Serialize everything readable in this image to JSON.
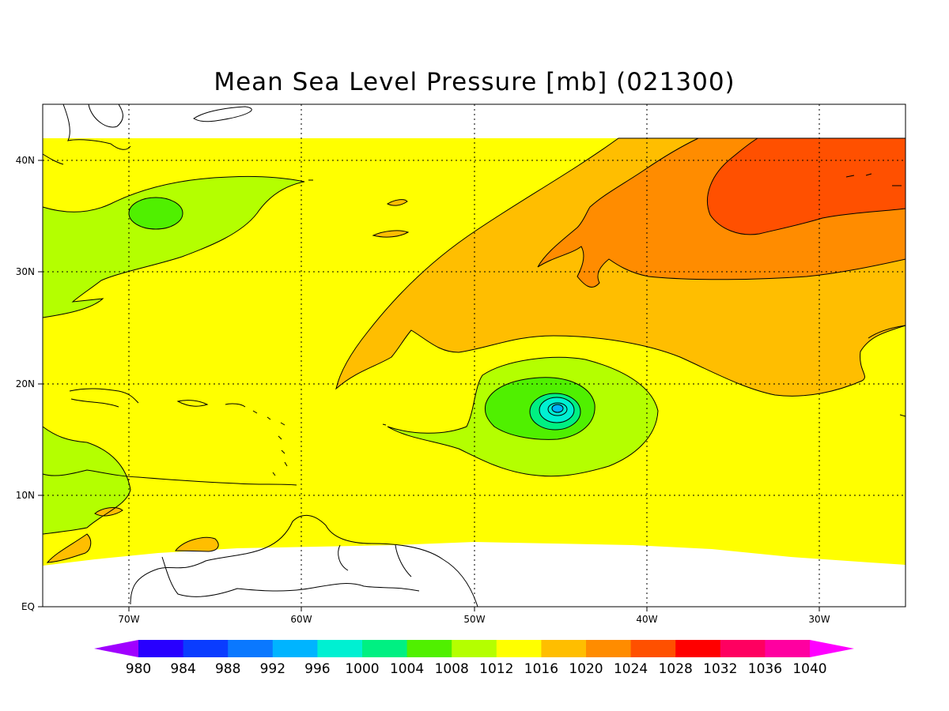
{
  "title": "Mean Sea Level Pressure [mb] (021300)",
  "axes": {
    "x_ticks": [
      "70W",
      "60W",
      "50W",
      "40W",
      "30W"
    ],
    "y_ticks": [
      "EQ",
      "10N",
      "20N",
      "30N",
      "40N"
    ]
  },
  "colorbar": {
    "levels": [
      "980",
      "984",
      "988",
      "992",
      "996",
      "1000",
      "1004",
      "1008",
      "1012",
      "1016",
      "1020",
      "1024",
      "1028",
      "1032",
      "1036",
      "1040"
    ],
    "colors": [
      "#a000ff",
      "#2800ff",
      "#0a3cff",
      "#0a78ff",
      "#00b4ff",
      "#00f0d2",
      "#00f082",
      "#50f000",
      "#b4ff00",
      "#ffff00",
      "#ffbe00",
      "#ff8c00",
      "#ff5000",
      "#ff0000",
      "#ff0060",
      "#ff00a0",
      "#ff00ff"
    ]
  },
  "map_colors": {
    "land_bg": "#ffffff",
    "c1012": "#b4ff00",
    "c1016": "#ffff00",
    "c1020": "#ffbe00",
    "c1024": "#ff8c00",
    "c1028": "#ff5000",
    "c1008": "#50f000",
    "c1004": "#00f082",
    "c1000": "#00f0d2",
    "c996": "#00b4ff"
  }
}
